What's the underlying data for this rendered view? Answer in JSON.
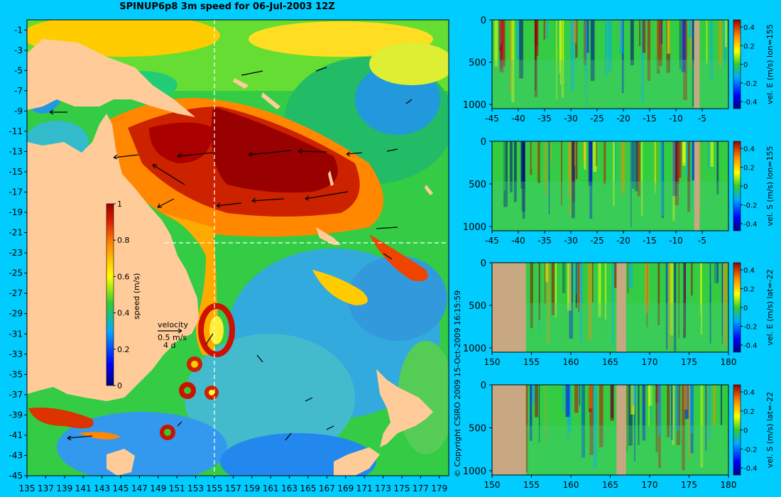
{
  "page": {
    "title": "SPINUP6p8 3m speed for 06-Jul-2003 12Z",
    "copyright": "© Copyright CSIRO 2009   15-Oct-2009 16:15:59"
  },
  "colors": {
    "background": "#00ccff",
    "land": "#ffcc99",
    "section_land": "#c8a882",
    "guide_line": "#ffffff"
  },
  "chart_data": [
    {
      "type": "heatmap",
      "name": "surface-speed-map",
      "title": "SPINUP6p8 3m speed for 06-Jul-2003 12Z",
      "x_ticks": [
        "135",
        "137",
        "139",
        "141",
        "143",
        "145",
        "147",
        "149",
        "151",
        "153",
        "155",
        "157",
        "159",
        "161",
        "163",
        "165",
        "167",
        "169",
        "171",
        "173",
        "175",
        "177",
        "179"
      ],
      "y_ticks": [
        "-1",
        "-3",
        "-5",
        "-7",
        "-9",
        "-11",
        "-13",
        "-15",
        "-17",
        "-19",
        "-21",
        "-23",
        "-25",
        "-27",
        "-29",
        "-31",
        "-33",
        "-35",
        "-37",
        "-39",
        "-41",
        "-43",
        "-45"
      ],
      "xlim": [
        135,
        180
      ],
      "ylim": [
        -45,
        0
      ],
      "colorbar": {
        "label": "speed (m/s)",
        "ticks": [
          "1",
          "0.8",
          "0.6",
          "0.4",
          "0.2",
          "0"
        ],
        "range": [
          0,
          1
        ]
      },
      "velocity_legend": {
        "label": "velocity",
        "speed": "0.5 m/s",
        "duration": "4 d"
      },
      "section_lon": 155,
      "section_lat": -22
    },
    {
      "type": "heatmap",
      "name": "section-vel-e-lon155",
      "colorbar_label": "vel. E (m/s) lon=155",
      "x_ticks": [
        "-45",
        "-40",
        "-35",
        "-30",
        "-25",
        "-20",
        "-15",
        "-10",
        "-5"
      ],
      "y_ticks": [
        "0",
        "500",
        "1000"
      ],
      "xlim": [
        -45,
        0
      ],
      "ylim": [
        1050,
        0
      ],
      "colorbar_ticks": [
        "0.4",
        "0.2",
        "0",
        "-0.2",
        "-0.4"
      ],
      "land_x": [
        [
          -6.5,
          -5.5
        ]
      ]
    },
    {
      "type": "heatmap",
      "name": "section-vel-s-lon155",
      "colorbar_label": "vel. S (m/s) lon=155",
      "x_ticks": [
        "-45",
        "-40",
        "-35",
        "-30",
        "-25",
        "-20",
        "-15",
        "-10",
        "-5"
      ],
      "y_ticks": [
        "0",
        "500",
        "1000"
      ],
      "xlim": [
        -45,
        0
      ],
      "ylim": [
        1050,
        0
      ],
      "colorbar_ticks": [
        "0.4",
        "0.2",
        "0",
        "-0.2",
        "-0.4"
      ],
      "land_x": [
        [
          -6.5,
          -5.5
        ]
      ]
    },
    {
      "type": "heatmap",
      "name": "section-vel-e-lat22",
      "colorbar_label": "vel. E (m/s) lat=-22",
      "x_ticks": [
        "150",
        "155",
        "160",
        "165",
        "170",
        "175",
        "180"
      ],
      "y_ticks": [
        "0",
        "500",
        "1000"
      ],
      "xlim": [
        150,
        180
      ],
      "ylim": [
        1050,
        0
      ],
      "colorbar_ticks": [
        "0.4",
        "0.2",
        "0",
        "-0.2",
        "-0.4"
      ],
      "land_x": [
        [
          150,
          154.3
        ],
        [
          165.8,
          167
        ]
      ]
    },
    {
      "type": "heatmap",
      "name": "section-vel-s-lat22",
      "colorbar_label": "vel. S (m/s) lat=-22",
      "x_ticks": [
        "150",
        "155",
        "160",
        "165",
        "170",
        "175",
        "180"
      ],
      "y_ticks": [
        "0",
        "500",
        "1000"
      ],
      "xlim": [
        150,
        180
      ],
      "ylim": [
        1050,
        0
      ],
      "colorbar_ticks": [
        "0.4",
        "0.2",
        "0",
        "-0.2",
        "-0.4"
      ],
      "land_x": [
        [
          150,
          154.3
        ],
        [
          165.8,
          167
        ]
      ]
    }
  ]
}
